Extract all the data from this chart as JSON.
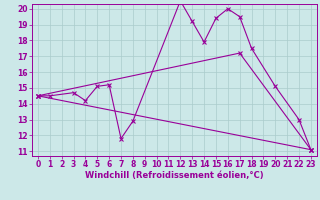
{
  "xlabel": "Windchill (Refroidissement éolien,°C)",
  "xlim": [
    -0.5,
    23.5
  ],
  "ylim": [
    10.7,
    20.3
  ],
  "xticks": [
    0,
    1,
    2,
    3,
    4,
    5,
    6,
    7,
    8,
    9,
    10,
    11,
    12,
    13,
    14,
    15,
    16,
    17,
    18,
    19,
    20,
    21,
    22,
    23
  ],
  "yticks": [
    11,
    12,
    13,
    14,
    15,
    16,
    17,
    18,
    19,
    20
  ],
  "bg_color": "#cce8e8",
  "grid_color": "#aacccc",
  "line_color": "#990099",
  "line1_x": [
    0,
    1,
    3,
    4,
    5,
    6,
    7,
    8,
    12,
    13,
    14,
    15,
    16,
    17,
    18,
    20,
    22,
    23
  ],
  "line1_y": [
    14.5,
    14.5,
    14.7,
    14.2,
    15.1,
    15.2,
    11.8,
    12.9,
    20.5,
    19.2,
    17.9,
    19.4,
    20.0,
    19.5,
    17.5,
    15.1,
    13.0,
    11.1
  ],
  "line2_x": [
    0,
    23
  ],
  "line2_y": [
    14.5,
    11.1
  ],
  "line3_x": [
    0,
    17,
    23
  ],
  "line3_y": [
    14.5,
    17.2,
    11.1
  ],
  "xlabel_fontsize": 6,
  "tick_fontsize": 5.5
}
